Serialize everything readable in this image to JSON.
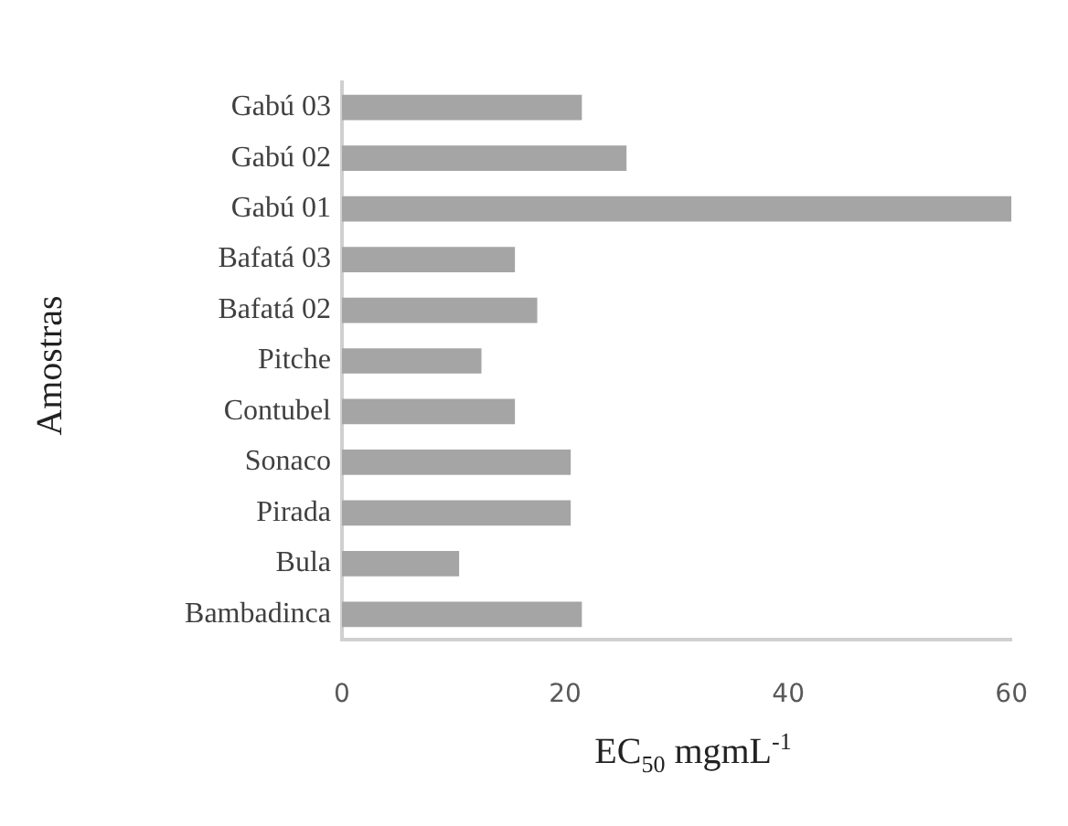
{
  "chart_data": {
    "type": "bar",
    "orientation": "horizontal",
    "xlabel": "EC$_{50}$ mgmL$^{-1}$",
    "ylabel": "Amostras",
    "categories": [
      "Gabú 03",
      "Gabú 02",
      "Gabú 01",
      "Bafatá 03",
      "Bafatá 02",
      "Pitche",
      "Contubel",
      "Sonaco",
      "Pirada",
      "Bula",
      "Bambadinca"
    ],
    "values": [
      21.5,
      25.5,
      60,
      15.5,
      17.5,
      12.5,
      15.5,
      20.5,
      20.5,
      10.5,
      21.5
    ],
    "color": "#a5a5a5",
    "xlim": [
      0,
      60
    ],
    "xticks": [
      0,
      20,
      40,
      60
    ],
    "grid": false,
    "legend": false
  }
}
